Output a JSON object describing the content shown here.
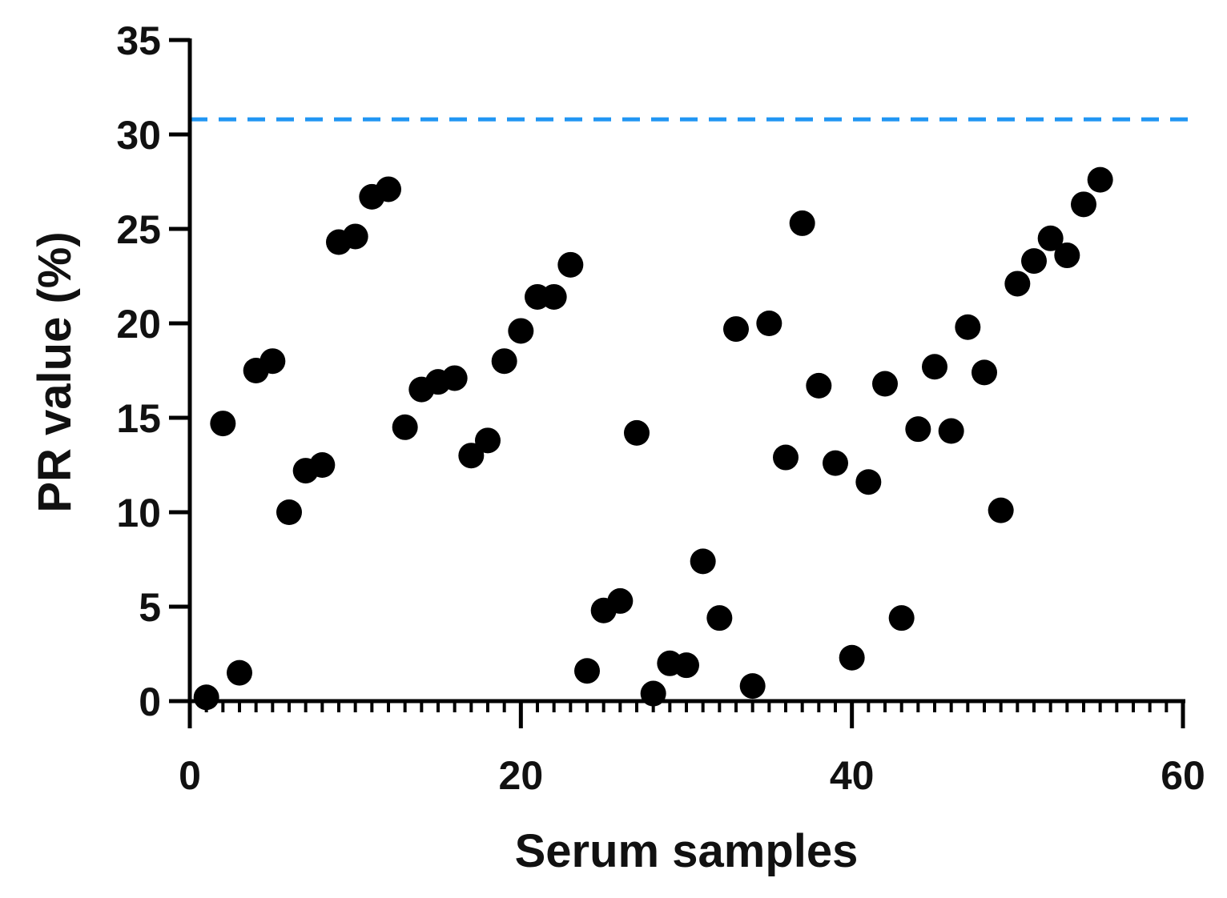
{
  "chart_data": {
    "type": "scatter",
    "xlabel": "Serum samples",
    "ylabel": "PR value (%)",
    "xlim": [
      0,
      60
    ],
    "ylim": [
      0,
      35
    ],
    "x_ticks": [
      0,
      20,
      40,
      60
    ],
    "y_ticks": [
      0,
      5,
      10,
      15,
      20,
      25,
      30,
      35
    ],
    "x_minor_step": 1,
    "grid": false,
    "legend": "none",
    "point_color": "#000000",
    "threshold": {
      "value": 30.8,
      "style": "dashed",
      "color": "#2196f3"
    },
    "series": [
      {
        "x": [
          1,
          2,
          3,
          4,
          5,
          6,
          7,
          8,
          9,
          10,
          11,
          12,
          13,
          14,
          15,
          16,
          17,
          18,
          19,
          20,
          21,
          22,
          23,
          24,
          25,
          26,
          27,
          28,
          29,
          30,
          31,
          32,
          33,
          34,
          35,
          36,
          37,
          38,
          39,
          40,
          41,
          42,
          43,
          44,
          45,
          46,
          47,
          48,
          49,
          50,
          51,
          52,
          53,
          54,
          55
        ],
        "y": [
          0.2,
          14.7,
          1.5,
          17.5,
          18.0,
          10.0,
          12.2,
          12.5,
          24.3,
          24.6,
          26.7,
          27.1,
          14.5,
          16.5,
          16.9,
          17.1,
          13.0,
          13.8,
          18.0,
          19.6,
          21.4,
          21.4,
          23.1,
          1.6,
          4.8,
          5.3,
          14.2,
          0.4,
          2.0,
          1.9,
          7.4,
          4.4,
          19.7,
          0.8,
          20.0,
          12.9,
          25.3,
          16.7,
          12.6,
          2.3,
          11.6,
          16.8,
          4.4,
          14.4,
          17.7,
          14.3,
          19.8,
          17.4,
          10.1,
          22.1,
          23.3,
          24.5,
          23.6,
          26.3,
          27.6
        ]
      }
    ]
  }
}
